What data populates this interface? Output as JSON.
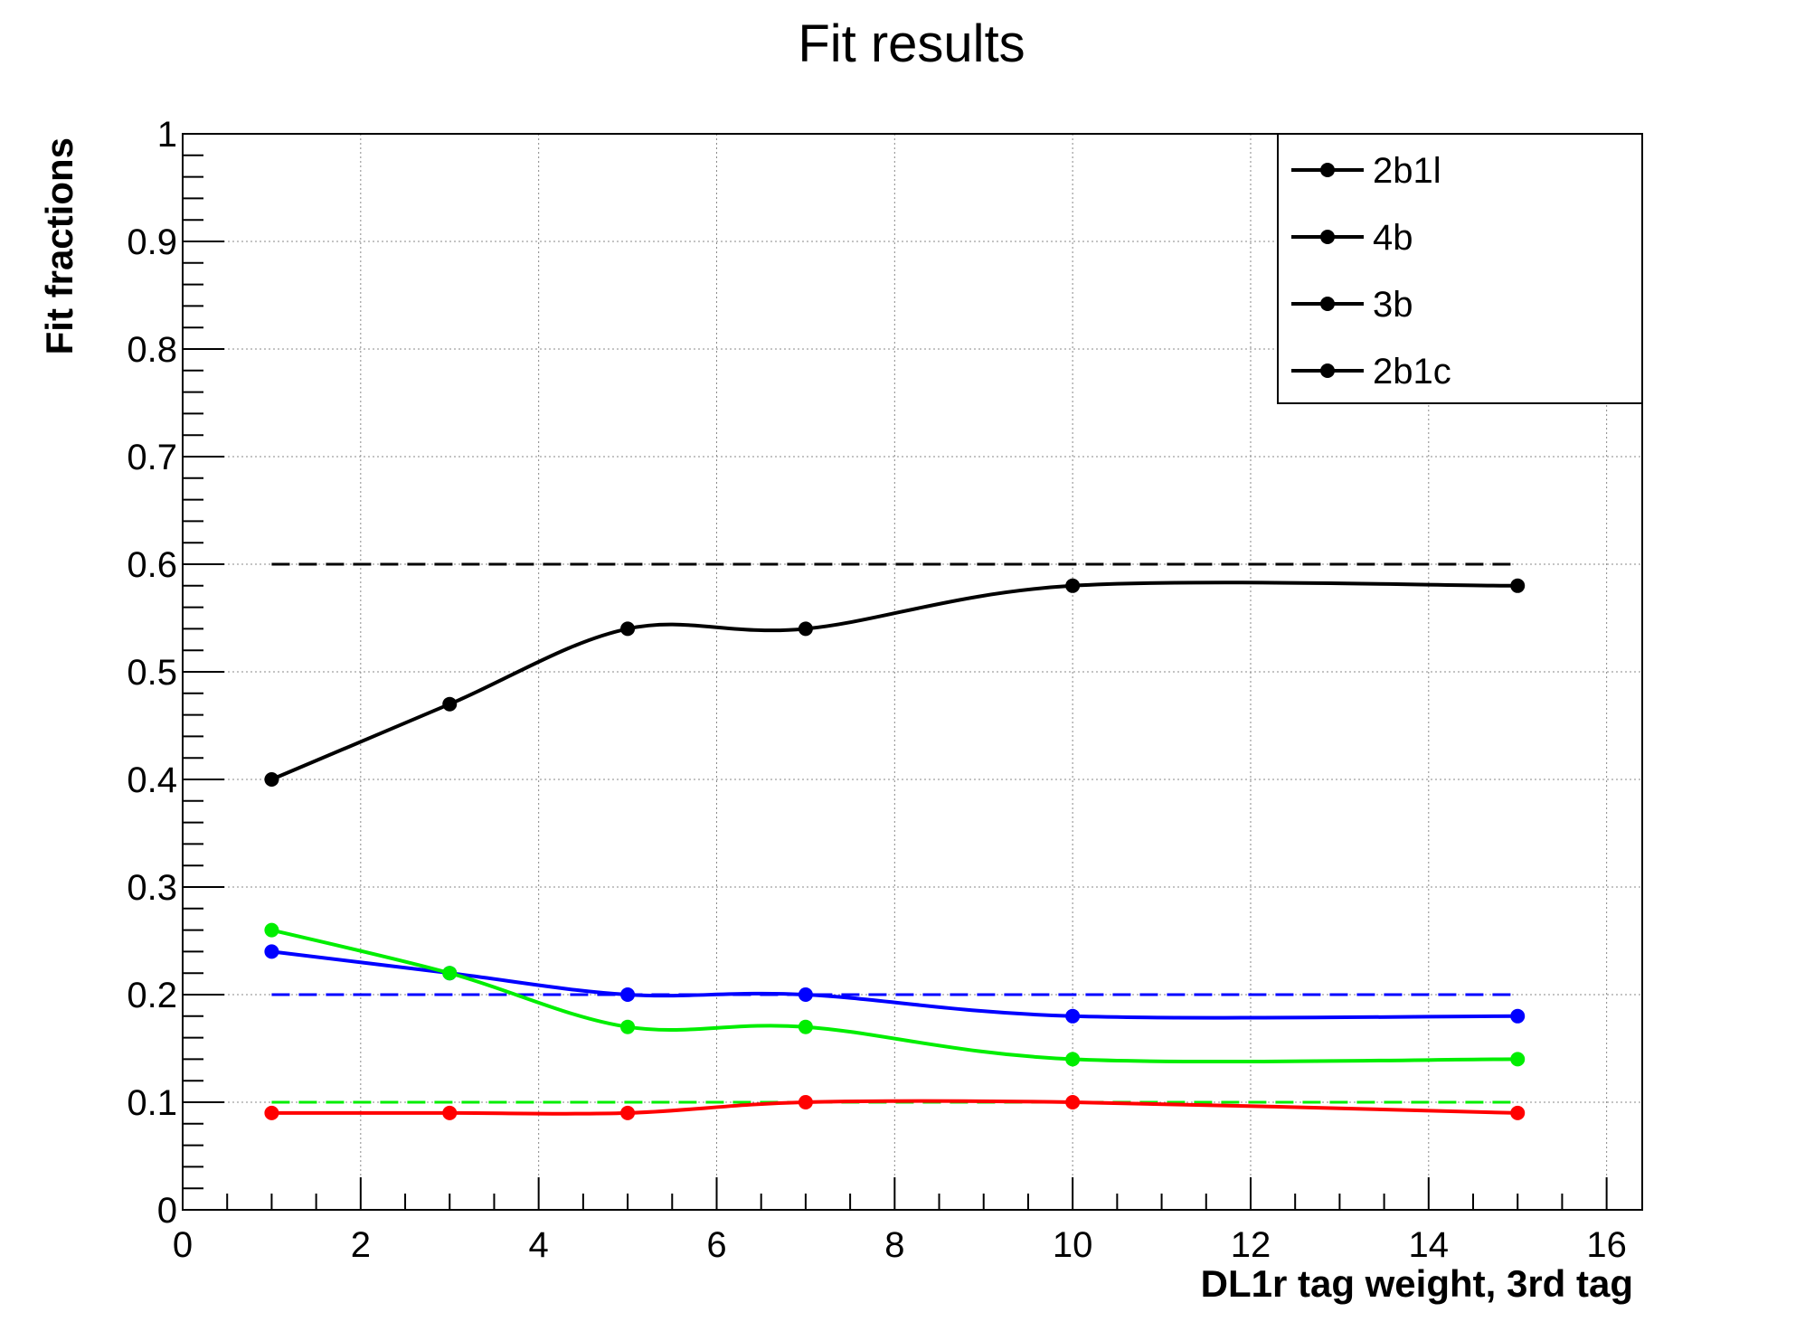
{
  "chart_data": {
    "type": "line",
    "title": "Fit results",
    "xlabel": "DL1r tag weight, 3rd tag",
    "ylabel": "Fit fractions",
    "xlim": [
      0,
      16.4
    ],
    "ylim": [
      0,
      1
    ],
    "x_ticks": [
      0,
      2,
      4,
      6,
      8,
      10,
      12,
      14,
      16
    ],
    "y_ticks": [
      0,
      0.1,
      0.2,
      0.3,
      0.4,
      0.5,
      0.6,
      0.7,
      0.8,
      0.9,
      1
    ],
    "x_tick_labels": [
      "0",
      "2",
      "4",
      "6",
      "8",
      "10",
      "12",
      "14",
      "16"
    ],
    "y_tick_labels": [
      "0",
      "0.1",
      "0.2",
      "0.3",
      "0.4",
      "0.5",
      "0.6",
      "0.7",
      "0.8",
      "0.9",
      "1"
    ],
    "grid": true,
    "legend_position": "top-right",
    "legend": [
      "2b1l",
      "4b",
      "3b",
      "2b1c"
    ],
    "x": [
      1,
      3,
      5,
      7,
      10,
      15
    ],
    "series": [
      {
        "color": "#000000",
        "values": [
          0.4,
          0.47,
          0.54,
          0.54,
          0.58,
          0.58
        ]
      },
      {
        "color": "#0000ff",
        "values": [
          0.24,
          0.22,
          0.2,
          0.2,
          0.18,
          0.18
        ]
      },
      {
        "color": "#00ee00",
        "values": [
          0.26,
          0.22,
          0.17,
          0.17,
          0.14,
          0.14
        ]
      },
      {
        "color": "#ff0000",
        "values": [
          0.09,
          0.09,
          0.09,
          0.1,
          0.1,
          0.09
        ]
      }
    ],
    "reference_lines": [
      {
        "color": "#000000",
        "y": 0.6,
        "x_range": [
          1,
          15
        ]
      },
      {
        "color": "#0000ff",
        "y": 0.2,
        "x_range": [
          1,
          15
        ]
      },
      {
        "color": "#00ee00",
        "y": 0.1,
        "x_range": [
          1,
          15
        ]
      }
    ]
  }
}
